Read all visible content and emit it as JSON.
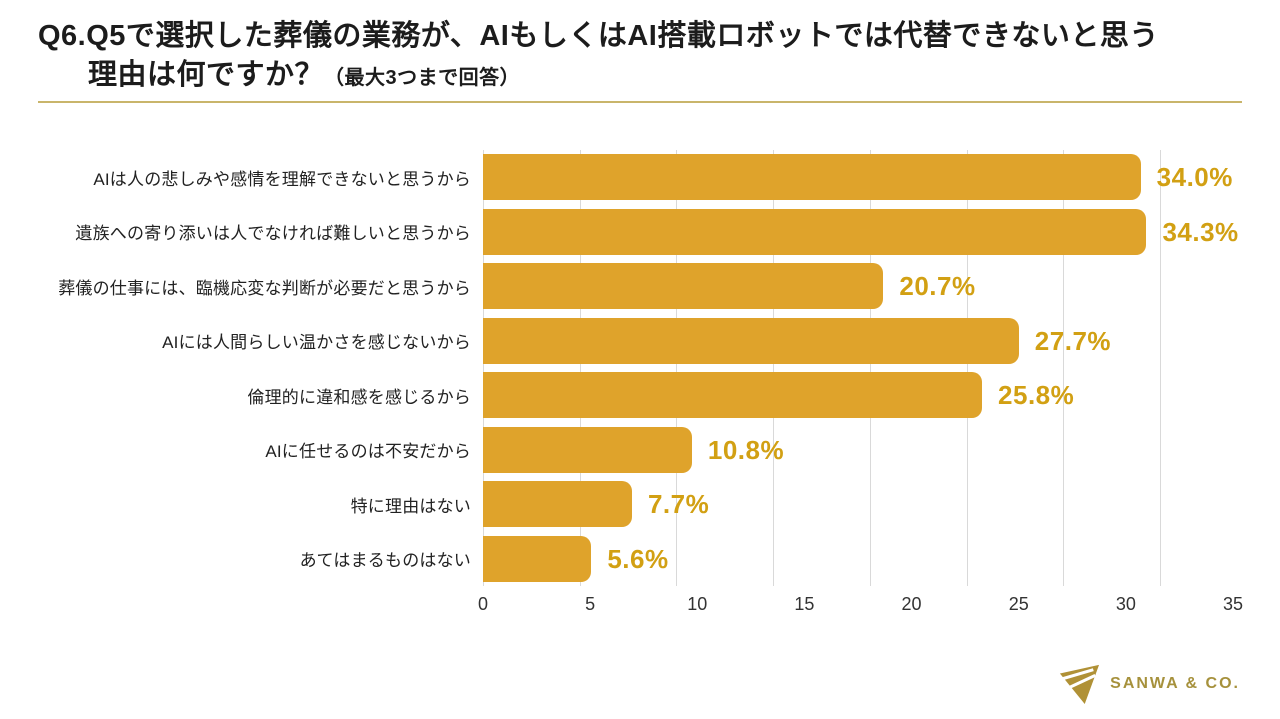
{
  "title": {
    "line1": "Q6.Q5で選択した葬儀の業務が、AIもしくはAI搭載ロボットでは代替できないと思う",
    "line2_main": "理由は何ですか？",
    "line2_note": "（最大3つまで回答）"
  },
  "chart_data": {
    "type": "bar",
    "orientation": "horizontal",
    "title": "",
    "categories": [
      "AIは人の悲しみや感情を理解できないと思うから",
      "遺族への寄り添いは人でなければ難しいと思うから",
      "葬儀の仕事には、臨機応変な判断が必要だと思うから",
      "AIには人間らしい温かさを感じないから",
      "倫理的に違和感を感じるから",
      "AIに任せるのは不安だから",
      "特に理由はない",
      "あてはまるものはない"
    ],
    "values": [
      34.0,
      34.3,
      20.7,
      27.7,
      25.8,
      10.8,
      7.7,
      5.6
    ],
    "value_labels": [
      "34.0%",
      "34.3%",
      "20.7%",
      "27.7%",
      "25.8%",
      "10.8%",
      "7.7%",
      "5.6%"
    ],
    "xlim": [
      0,
      35
    ],
    "x_ticks": [
      "0",
      "5",
      "10",
      "15",
      "20",
      "25",
      "30",
      "35"
    ],
    "grid": true,
    "legend": "none",
    "bar_color": "#DFA32B",
    "value_label_color": "#D2A013"
  },
  "footer": {
    "logo_text": "SANWA & CO."
  },
  "colors": {
    "background": "#FFFFFF",
    "title_text": "#1C1C1C",
    "title_rule": "#C9B56B",
    "category_label": "#222222",
    "axis_label": "#333333",
    "gridline": "#D9D9D9",
    "logo": "#A6913C",
    "logo_icon": "#B09136"
  }
}
